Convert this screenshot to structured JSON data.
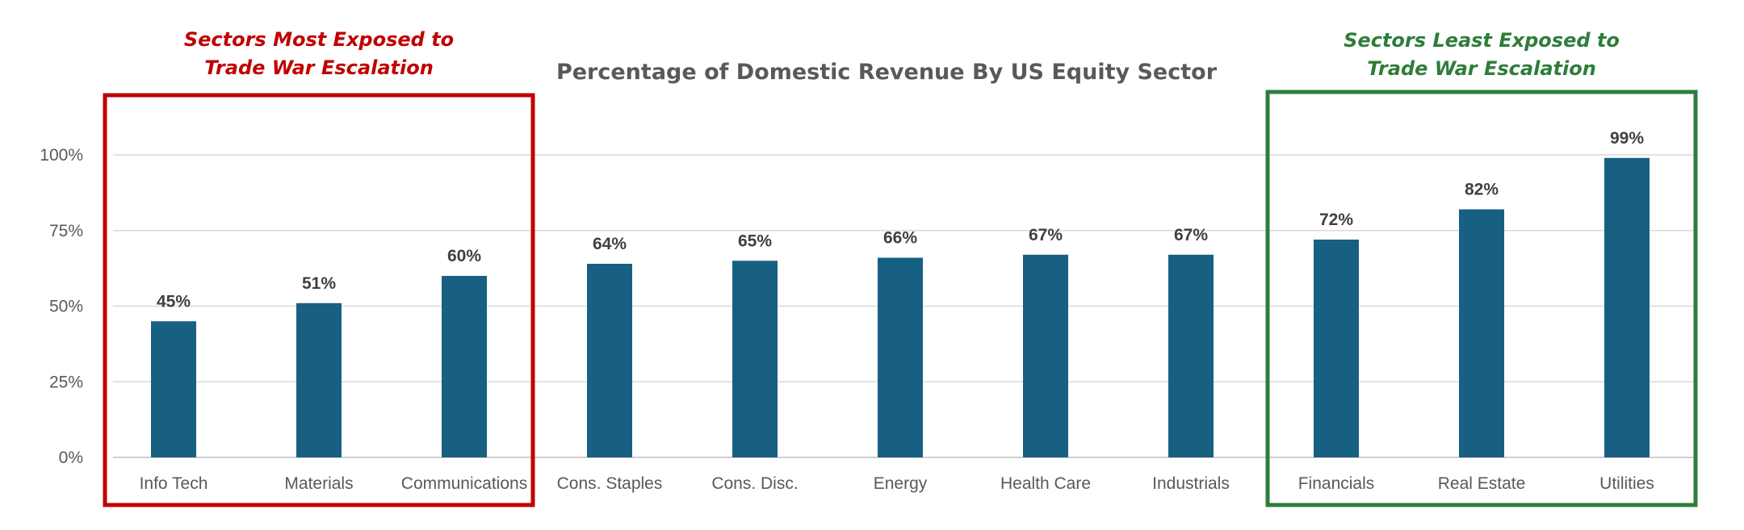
{
  "chart_data": {
    "type": "bar",
    "title": "Percentage of Domestic Revenue By US Equity Sector",
    "categories": [
      "Info Tech",
      "Materials",
      "Communications",
      "Cons. Staples",
      "Cons. Disc.",
      "Energy",
      "Health Care",
      "Industrials",
      "Financials",
      "Real Estate",
      "Utilities"
    ],
    "values": [
      45,
      51,
      60,
      64,
      65,
      66,
      67,
      67,
      72,
      82,
      99
    ],
    "data_labels": [
      "45%",
      "51%",
      "60%",
      "64%",
      "65%",
      "66%",
      "67%",
      "67%",
      "72%",
      "82%",
      "99%"
    ],
    "y_ticks": [
      0,
      25,
      50,
      75,
      100
    ],
    "y_tick_labels": [
      "0%",
      "25%",
      "50%",
      "75%",
      "100%"
    ],
    "ylim": [
      0,
      120
    ],
    "grid": true,
    "bar_color": "#176082",
    "callouts": [
      {
        "lines": [
          "Sectors Most Exposed to",
          "Trade War Escalation"
        ],
        "color": "#C00000",
        "from_index": 0,
        "to_index": 2
      },
      {
        "lines": [
          "Sectors Least Exposed to",
          "Trade War Escalation"
        ],
        "color": "#2E7D3A",
        "from_index": 8,
        "to_index": 10
      }
    ]
  }
}
